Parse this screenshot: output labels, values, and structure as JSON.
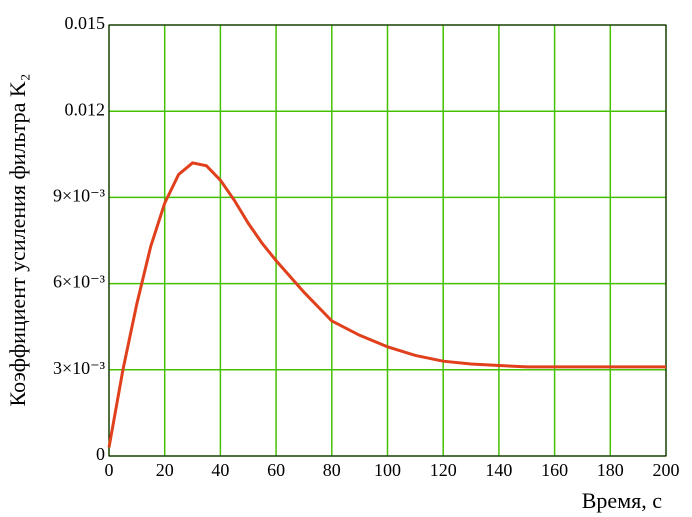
{
  "chart_data": {
    "type": "line",
    "x_label": "Время, с",
    "y_label": "Коэффициент усиления фильтра K₂",
    "x": [
      0,
      5,
      10,
      15,
      20,
      25,
      30,
      35,
      40,
      45,
      50,
      55,
      60,
      70,
      80,
      90,
      100,
      110,
      120,
      130,
      140,
      150,
      160,
      170,
      180,
      190,
      200
    ],
    "series": [
      {
        "color": "#e0401c",
        "values": [
          0.0003,
          0.003,
          0.0053,
          0.0073,
          0.0088,
          0.0098,
          0.0102,
          0.0101,
          0.0096,
          0.0089,
          0.0081,
          0.0074,
          0.0068,
          0.0057,
          0.0047,
          0.0042,
          0.0038,
          0.0035,
          0.0033,
          0.0032,
          0.00315,
          0.0031,
          0.0031,
          0.0031,
          0.0031,
          0.0031,
          0.0031
        ]
      }
    ],
    "xlim": [
      0,
      200
    ],
    "xticks": [
      0,
      20,
      40,
      60,
      80,
      100,
      120,
      140,
      160,
      180,
      200
    ],
    "ylim": [
      0,
      0.015
    ],
    "yticks": [
      0,
      {
        "value": 0.003,
        "label": "3×10⁻³"
      },
      {
        "value": 0.006,
        "label": "6×10⁻³"
      },
      {
        "value": 0.009,
        "label": "9×10⁻³"
      },
      0.012,
      0.015
    ],
    "grid": true,
    "grid_color": "#44c000"
  }
}
